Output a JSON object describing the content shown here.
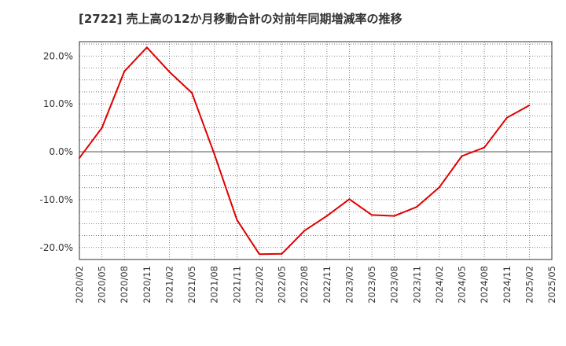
{
  "chart_data": {
    "type": "line",
    "title": "[2722]  売上高の12か月移動合計の対前年同期増減率の推移",
    "xlabel": "",
    "ylabel": "",
    "ylim": [
      -22.5,
      23
    ],
    "yticks": [
      20,
      10,
      0,
      -10,
      -20
    ],
    "ytick_labels": [
      "20.0%",
      "10.0%",
      "0.0%",
      "-10.0%",
      "-20.0%"
    ],
    "categories": [
      "2020/02",
      "2020/05",
      "2020/08",
      "2020/11",
      "2021/02",
      "2021/05",
      "2021/08",
      "2021/11",
      "2022/02",
      "2022/05",
      "2022/08",
      "2022/11",
      "2023/02",
      "2023/05",
      "2023/08",
      "2023/11",
      "2024/02",
      "2024/05",
      "2024/08",
      "2024/11",
      "2025/02",
      "2025/05"
    ],
    "series": [
      {
        "name": "売上高の12か月移動合計の対前年同期増減率",
        "color": "#e00000",
        "values": [
          -1.3,
          5.0,
          16.8,
          21.8,
          16.7,
          12.3,
          -0.5,
          -14.2,
          -21.4,
          -21.3,
          -16.5,
          -13.4,
          -9.9,
          -13.2,
          -13.4,
          -11.5,
          -7.4,
          -0.9,
          0.9,
          7.1,
          9.7,
          null
        ]
      }
    ],
    "grid": true,
    "legend": "none"
  }
}
